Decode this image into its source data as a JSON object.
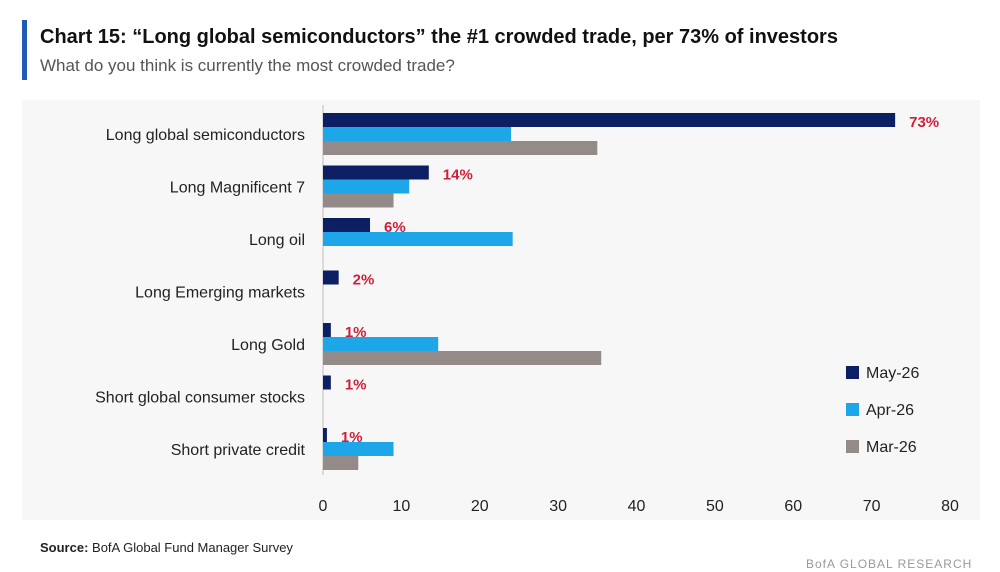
{
  "header": {
    "title": "Chart 15: “Long global semiconductors” the #1 crowded trade, per 73% of investors",
    "subtitle": "What do you think is currently the most crowded trade?"
  },
  "footer": {
    "source_label": "Source:",
    "source_text": "BofA Global Fund Manager Survey",
    "brand": "BofA GLOBAL RESEARCH"
  },
  "colors": {
    "accent": "#1e5bb5",
    "may": "#0d1f63",
    "apr": "#1ea7e8",
    "mar": "#948a87",
    "label": "#cf1f3a"
  },
  "chart_data": {
    "type": "bar",
    "orientation": "horizontal",
    "title": "Chart 15: “Long global semiconductors” the #1 crowded trade, per 73% of investors",
    "subtitle": "What do you think is currently the most crowded trade?",
    "categories": [
      "Long global semiconductors",
      "Long Magnificent 7",
      "Long oil",
      "Long Emerging markets",
      "Long Gold",
      "Short global consumer stocks",
      "Short private credit"
    ],
    "series": [
      {
        "name": "May-26",
        "values": [
          73,
          13.5,
          6,
          2,
          1,
          1,
          0.5
        ]
      },
      {
        "name": "Apr-26",
        "values": [
          24,
          11,
          24.2,
          0,
          14.7,
          0,
          9
        ]
      },
      {
        "name": "Mar-26",
        "values": [
          35,
          9,
          0,
          0,
          35.5,
          0,
          4.5
        ]
      }
    ],
    "data_labels": [
      "73%",
      "14%",
      "6%",
      "2%",
      "1%",
      "1%",
      "1%"
    ],
    "xlim": [
      0,
      80
    ],
    "xticks": [
      0,
      10,
      20,
      30,
      40,
      50,
      60,
      70,
      80
    ],
    "grid": false,
    "legend": "bottom-right"
  }
}
